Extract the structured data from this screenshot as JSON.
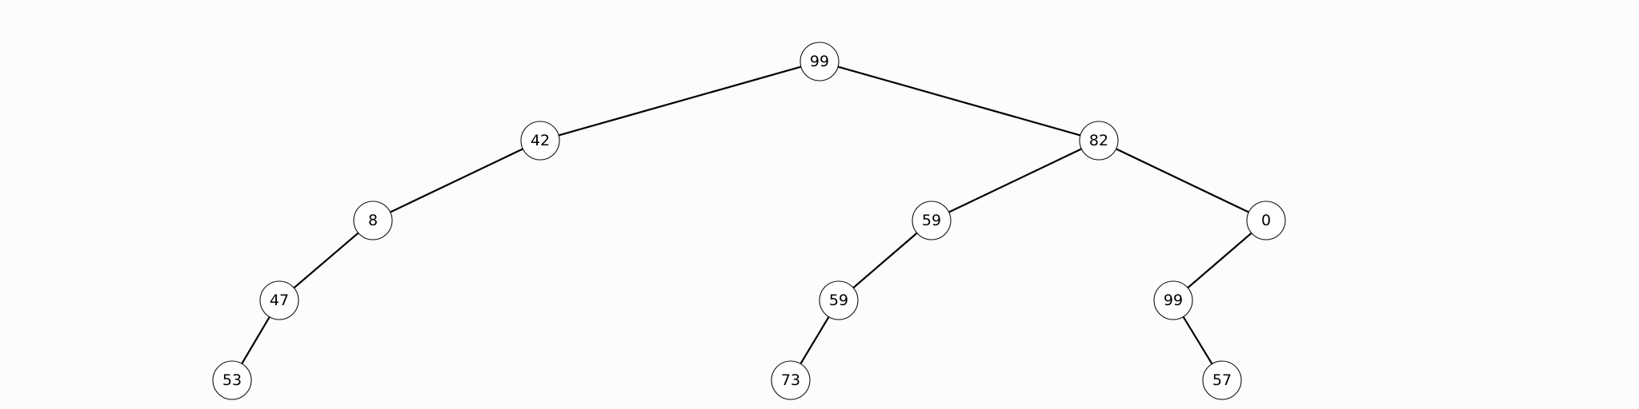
{
  "tree": {
    "nodes": [
      {
        "id": "n1",
        "label": "99"
      },
      {
        "id": "n2",
        "label": "42"
      },
      {
        "id": "n3",
        "label": "82"
      },
      {
        "id": "n4",
        "label": "8"
      },
      {
        "id": "n5",
        "label": "59"
      },
      {
        "id": "n6",
        "label": "0"
      },
      {
        "id": "n7",
        "label": "47"
      },
      {
        "id": "n8",
        "label": "59"
      },
      {
        "id": "n9",
        "label": "99"
      },
      {
        "id": "n10",
        "label": "53"
      },
      {
        "id": "n11",
        "label": "73"
      },
      {
        "id": "n12",
        "label": "57"
      }
    ],
    "edges": [
      {
        "from": "n1",
        "to": "n2"
      },
      {
        "from": "n1",
        "to": "n3"
      },
      {
        "from": "n2",
        "to": "n4"
      },
      {
        "from": "n3",
        "to": "n5"
      },
      {
        "from": "n3",
        "to": "n6"
      },
      {
        "from": "n4",
        "to": "n7"
      },
      {
        "from": "n5",
        "to": "n8"
      },
      {
        "from": "n6",
        "to": "n9"
      },
      {
        "from": "n7",
        "to": "n10"
      },
      {
        "from": "n8",
        "to": "n11"
      },
      {
        "from": "n9",
        "to": "n12"
      }
    ]
  }
}
